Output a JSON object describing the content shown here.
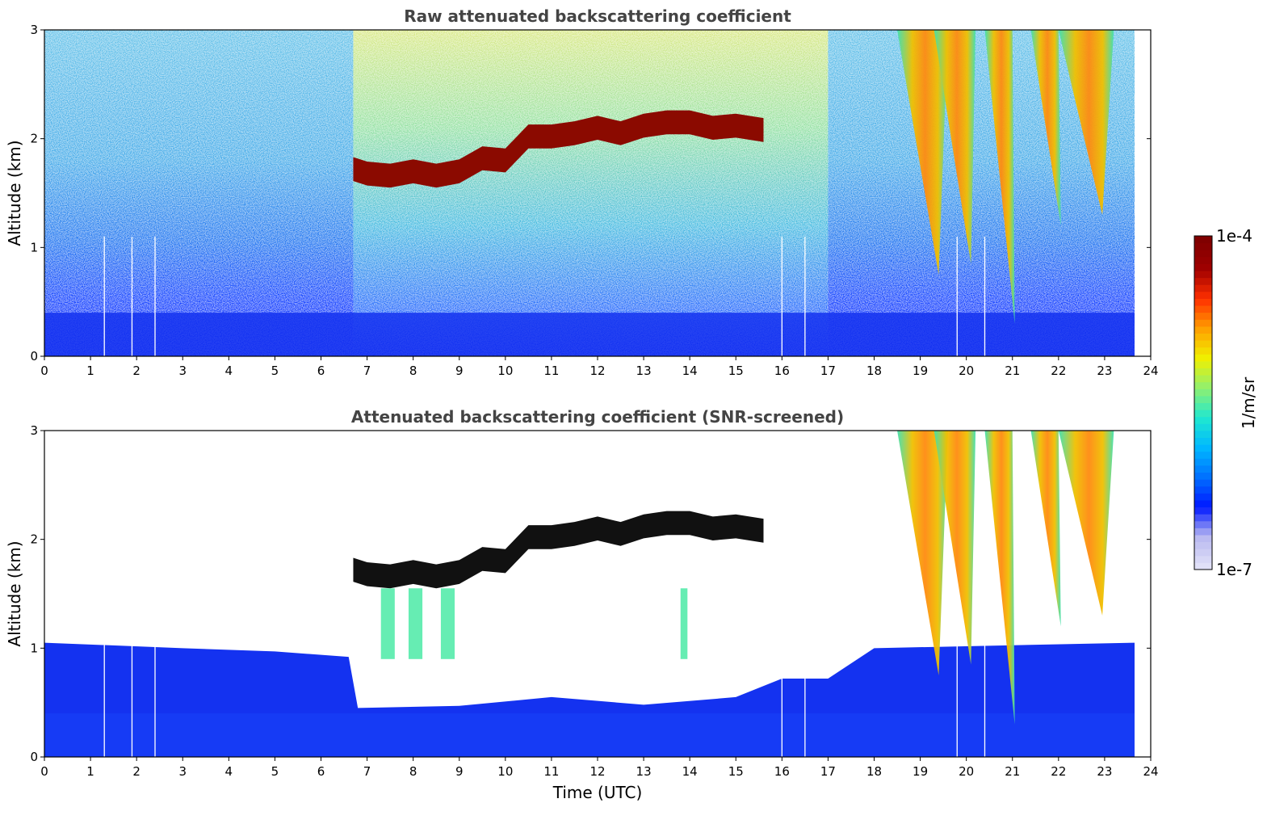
{
  "chart_data": [
    {
      "type": "heatmap",
      "title": "Raw attenuated backscattering coefficient",
      "xlabel": "",
      "ylabel": "Altitude (km)",
      "xlim": [
        0,
        24
      ],
      "ylim": [
        0,
        3
      ],
      "xticks": [
        "0",
        "1",
        "2",
        "3",
        "4",
        "5",
        "6",
        "7",
        "8",
        "9",
        "10",
        "11",
        "12",
        "13",
        "14",
        "15",
        "16",
        "17",
        "18",
        "19",
        "20",
        "21",
        "22",
        "23",
        "24"
      ],
      "yticks": [
        "0",
        "1",
        "2",
        "3"
      ],
      "data_end_hour": 23.65,
      "gap_hours": [
        1.3,
        1.9,
        2.4,
        16.0,
        16.5,
        19.8,
        20.4
      ],
      "cloud_layer": [
        {
          "x": 6.7,
          "y": 1.72
        },
        {
          "x": 7.0,
          "y": 1.68
        },
        {
          "x": 7.5,
          "y": 1.66
        },
        {
          "x": 8.0,
          "y": 1.7
        },
        {
          "x": 8.5,
          "y": 1.66
        },
        {
          "x": 9.0,
          "y": 1.7
        },
        {
          "x": 9.5,
          "y": 1.82
        },
        {
          "x": 10.0,
          "y": 1.8
        },
        {
          "x": 10.5,
          "y": 2.02
        },
        {
          "x": 11.0,
          "y": 2.02
        },
        {
          "x": 11.5,
          "y": 2.05
        },
        {
          "x": 12.0,
          "y": 2.1
        },
        {
          "x": 12.5,
          "y": 2.05
        },
        {
          "x": 13.0,
          "y": 2.12
        },
        {
          "x": 13.5,
          "y": 2.15
        },
        {
          "x": 14.0,
          "y": 2.15
        },
        {
          "x": 14.5,
          "y": 2.1
        },
        {
          "x": 15.0,
          "y": 2.12
        },
        {
          "x": 15.6,
          "y": 2.08
        }
      ]
    },
    {
      "type": "heatmap",
      "title": "Attenuated backscattering coefficient (SNR-screened)",
      "xlabel": "Time (UTC)",
      "ylabel": "Altitude (km)",
      "xlim": [
        0,
        24
      ],
      "ylim": [
        0,
        3
      ],
      "xticks": [
        "0",
        "1",
        "2",
        "3",
        "4",
        "5",
        "6",
        "7",
        "8",
        "9",
        "10",
        "11",
        "12",
        "13",
        "14",
        "15",
        "16",
        "17",
        "18",
        "19",
        "20",
        "21",
        "22",
        "23",
        "24"
      ],
      "yticks": [
        "0",
        "1",
        "2",
        "3"
      ],
      "boundary_layer_top": [
        {
          "x": 0,
          "y": 1.05
        },
        {
          "x": 3,
          "y": 1.0
        },
        {
          "x": 5,
          "y": 0.97
        },
        {
          "x": 6.6,
          "y": 0.92
        },
        {
          "x": 6.8,
          "y": 0.45
        },
        {
          "x": 9,
          "y": 0.47
        },
        {
          "x": 11,
          "y": 0.55
        },
        {
          "x": 13,
          "y": 0.48
        },
        {
          "x": 15,
          "y": 0.55
        },
        {
          "x": 16,
          "y": 0.72
        },
        {
          "x": 17,
          "y": 0.72
        },
        {
          "x": 18,
          "y": 1.0
        },
        {
          "x": 23.65,
          "y": 1.05
        }
      ]
    }
  ],
  "colorbar": {
    "label": "1/m/sr",
    "max_label": "1e-4",
    "min_label": "1e-7",
    "scale": "log",
    "colormap": "jet",
    "colors": [
      "#e0e0f8",
      "#b8b8f0",
      "#0018ff",
      "#0070ff",
      "#00b8ff",
      "#20e8d0",
      "#90f070",
      "#f0f000",
      "#ffa000",
      "#ff3000",
      "#a00000",
      "#800000"
    ]
  },
  "colors": {
    "boundary_layer": "#1432f0",
    "noise_low": "#1a4cff",
    "noise_high": "#30c8e8",
    "cloud": "#8b0a00",
    "cloud_screened": "#111111",
    "rain_core": "#ff9a10"
  }
}
